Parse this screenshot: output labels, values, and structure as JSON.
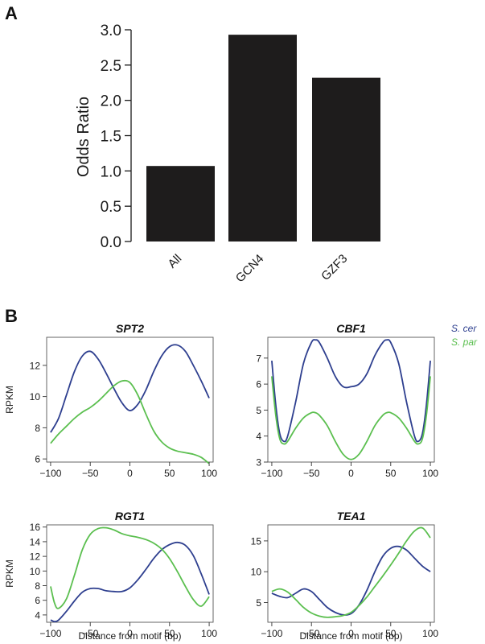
{
  "panels": {
    "a": "A",
    "b": "B"
  },
  "legend": [
    {
      "label": "S. cer",
      "color": "#2e3f8f"
    },
    {
      "label": "S. par",
      "color": "#5bbf4f"
    }
  ],
  "chart_data": [
    {
      "type": "bar",
      "categories": [
        "All",
        "GCN4",
        "GZF3"
      ],
      "values": [
        1.07,
        2.93,
        2.32
      ],
      "ylabel": "Odds Ratio",
      "ylim": [
        0,
        3.0
      ],
      "yticks": [
        "0.0",
        "0.5",
        "1.0",
        "1.5",
        "2.0",
        "2.5",
        "3.0"
      ],
      "bar_color": "#1e1c1c"
    },
    {
      "type": "line",
      "title": "SPT2",
      "ylabel": "RPKM",
      "xlabel": "",
      "xlim": [
        -105,
        105
      ],
      "ylim": [
        5.8,
        13.8
      ],
      "xticks": [
        "-100",
        "-50",
        "0",
        "50",
        "100"
      ],
      "yticks": [
        6,
        8,
        10,
        12
      ],
      "series": [
        {
          "name": "S. cer",
          "x": [
            -100,
            -90,
            -80,
            -70,
            -60,
            -50,
            -40,
            -30,
            -20,
            -10,
            0,
            10,
            20,
            30,
            40,
            50,
            60,
            70,
            80,
            90,
            100
          ],
          "y": [
            7.7,
            8.6,
            10.1,
            11.6,
            12.6,
            12.9,
            12.4,
            11.5,
            10.5,
            9.6,
            9.1,
            9.5,
            10.4,
            11.6,
            12.6,
            13.2,
            13.3,
            12.9,
            12.0,
            11.0,
            9.9
          ]
        },
        {
          "name": "S. par",
          "x": [
            -100,
            -90,
            -80,
            -70,
            -60,
            -50,
            -40,
            -30,
            -20,
            -10,
            0,
            10,
            20,
            30,
            40,
            50,
            60,
            70,
            80,
            90,
            100
          ],
          "y": [
            7.0,
            7.6,
            8.1,
            8.6,
            9.0,
            9.3,
            9.7,
            10.2,
            10.7,
            11.0,
            10.9,
            10.1,
            8.9,
            7.8,
            7.1,
            6.7,
            6.5,
            6.4,
            6.3,
            6.1,
            5.7
          ]
        }
      ]
    },
    {
      "type": "line",
      "title": "CBF1",
      "ylabel": "",
      "xlabel": "",
      "xlim": [
        -105,
        105
      ],
      "ylim": [
        3.0,
        7.8
      ],
      "xticks": [
        "-100",
        "-50",
        "0",
        "50",
        "100"
      ],
      "yticks": [
        3,
        4,
        5,
        6,
        7
      ],
      "series": [
        {
          "name": "S. cer",
          "x": [
            -100,
            -95,
            -90,
            -85,
            -80,
            -70,
            -60,
            -50,
            -45,
            -40,
            -30,
            -20,
            -10,
            0,
            10,
            20,
            30,
            40,
            45,
            50,
            60,
            70,
            80,
            85,
            90,
            95,
            100
          ],
          "y": [
            6.9,
            5.2,
            4.1,
            3.8,
            4.0,
            5.3,
            6.8,
            7.6,
            7.7,
            7.6,
            7.0,
            6.3,
            5.9,
            5.9,
            6.0,
            6.4,
            7.1,
            7.6,
            7.7,
            7.6,
            6.8,
            5.3,
            4.0,
            3.8,
            4.1,
            5.2,
            6.9
          ]
        },
        {
          "name": "S. par",
          "x": [
            -100,
            -95,
            -90,
            -85,
            -80,
            -70,
            -60,
            -50,
            -45,
            -40,
            -30,
            -20,
            -10,
            0,
            10,
            20,
            30,
            40,
            45,
            50,
            60,
            70,
            80,
            85,
            90,
            95,
            100
          ],
          "y": [
            6.3,
            4.8,
            3.9,
            3.7,
            3.8,
            4.3,
            4.7,
            4.9,
            4.9,
            4.8,
            4.4,
            3.8,
            3.3,
            3.1,
            3.3,
            3.8,
            4.4,
            4.8,
            4.9,
            4.9,
            4.7,
            4.3,
            3.8,
            3.7,
            3.9,
            4.8,
            6.3
          ]
        }
      ]
    },
    {
      "type": "line",
      "title": "RGT1",
      "ylabel": "RPKM",
      "xlabel": "Distance from motif (bp)",
      "xlim": [
        -105,
        105
      ],
      "ylim": [
        3.0,
        16.3
      ],
      "xticks": [
        "-100",
        "-50",
        "0",
        "50",
        "100"
      ],
      "yticks": [
        4,
        6,
        8,
        10,
        12,
        14,
        16
      ],
      "series": [
        {
          "name": "S. cer",
          "x": [
            -100,
            -95,
            -90,
            -80,
            -70,
            -60,
            -50,
            -40,
            -30,
            -20,
            -10,
            0,
            10,
            20,
            30,
            40,
            50,
            60,
            70,
            80,
            90,
            100
          ],
          "y": [
            3.3,
            3.1,
            3.3,
            4.5,
            5.9,
            7.1,
            7.6,
            7.6,
            7.3,
            7.2,
            7.2,
            7.7,
            8.8,
            10.2,
            11.7,
            12.9,
            13.6,
            13.9,
            13.5,
            12.1,
            9.6,
            6.8
          ]
        },
        {
          "name": "S. par",
          "x": [
            -100,
            -95,
            -90,
            -80,
            -70,
            -60,
            -50,
            -40,
            -30,
            -20,
            -10,
            0,
            10,
            20,
            30,
            40,
            50,
            60,
            70,
            80,
            90,
            100
          ],
          "y": [
            7.9,
            5.6,
            4.9,
            6.2,
            9.4,
            12.9,
            15.0,
            15.8,
            15.9,
            15.6,
            15.1,
            14.8,
            14.6,
            14.3,
            13.8,
            13.0,
            11.7,
            9.9,
            7.9,
            6.1,
            5.2,
            6.5
          ]
        }
      ]
    },
    {
      "type": "line",
      "title": "TEA1",
      "ylabel": "",
      "xlabel": "Distance from motif (bp)",
      "xlim": [
        -105,
        105
      ],
      "ylim": [
        1.8,
        17.6
      ],
      "xticks": [
        "-100",
        "-50",
        "0",
        "50",
        "100"
      ],
      "yticks": [
        5,
        10,
        15
      ],
      "series": [
        {
          "name": "S. cer",
          "x": [
            -100,
            -90,
            -80,
            -70,
            -60,
            -50,
            -40,
            -30,
            -20,
            -10,
            0,
            10,
            20,
            30,
            40,
            50,
            60,
            70,
            80,
            90,
            100
          ],
          "y": [
            6.5,
            6.0,
            5.8,
            6.5,
            7.2,
            6.8,
            5.5,
            4.2,
            3.4,
            3.0,
            3.2,
            4.6,
            7.0,
            10.0,
            12.5,
            13.8,
            14.1,
            13.5,
            12.2,
            10.9,
            10.0
          ]
        },
        {
          "name": "S. par",
          "x": [
            -100,
            -90,
            -80,
            -70,
            -60,
            -50,
            -40,
            -30,
            -20,
            -10,
            0,
            10,
            20,
            30,
            40,
            50,
            60,
            70,
            80,
            90,
            100
          ],
          "y": [
            6.8,
            7.2,
            6.7,
            5.5,
            4.2,
            3.3,
            2.8,
            2.6,
            2.7,
            2.9,
            3.4,
            4.5,
            5.9,
            7.6,
            9.3,
            11.1,
            13.0,
            15.0,
            16.6,
            17.1,
            15.5
          ]
        }
      ]
    }
  ]
}
